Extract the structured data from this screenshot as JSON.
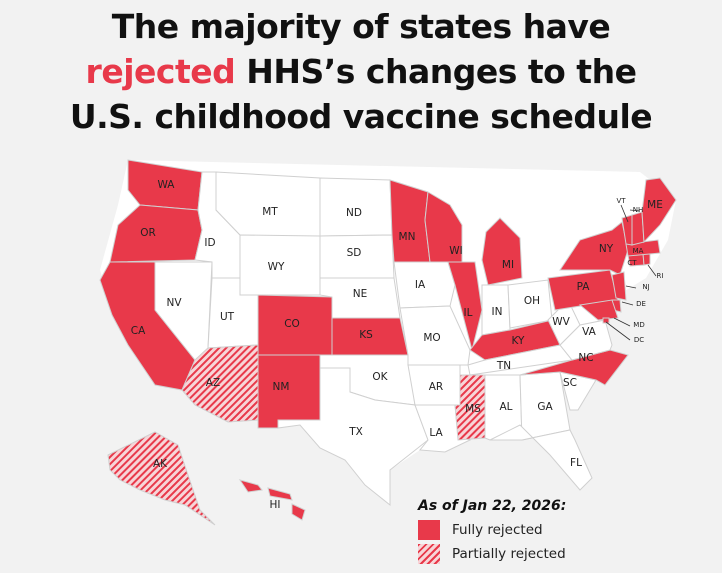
{
  "title": {
    "line1": "The majority of states have",
    "highlight": "rejected",
    "line2_rest": " HHS’s changes to the",
    "line3": "U.S. childhood vaccine schedule"
  },
  "legend": {
    "date": "As of Jan 22, 2026:",
    "fully_rejected": "Fully rejected",
    "partially_rejected": "Partially rejected"
  },
  "colors": {
    "fully_rejected": "#e8394a",
    "partially_rejected_stripe": "#e8394a",
    "partially_rejected_bg": "#f7d5d8",
    "no_action": "#ffffff",
    "borders": "#d0d0d0"
  },
  "states": [
    {
      "abbr": "WA",
      "status": "fully_rejected"
    },
    {
      "abbr": "OR",
      "status": "fully_rejected"
    },
    {
      "abbr": "CA",
      "status": "fully_rejected"
    },
    {
      "abbr": "NV",
      "status": "none"
    },
    {
      "abbr": "ID",
      "status": "none"
    },
    {
      "abbr": "MT",
      "status": "none"
    },
    {
      "abbr": "WY",
      "status": "none"
    },
    {
      "abbr": "UT",
      "status": "none"
    },
    {
      "abbr": "AZ",
      "status": "partially_rejected"
    },
    {
      "abbr": "CO",
      "status": "fully_rejected"
    },
    {
      "abbr": "NM",
      "status": "fully_rejected"
    },
    {
      "abbr": "ND",
      "status": "none"
    },
    {
      "abbr": "SD",
      "status": "none"
    },
    {
      "abbr": "NE",
      "status": "none"
    },
    {
      "abbr": "KS",
      "status": "fully_rejected"
    },
    {
      "abbr": "OK",
      "status": "none"
    },
    {
      "abbr": "TX",
      "status": "none"
    },
    {
      "abbr": "MN",
      "status": "fully_rejected"
    },
    {
      "abbr": "IA",
      "status": "none"
    },
    {
      "abbr": "MO",
      "status": "none"
    },
    {
      "abbr": "AR",
      "status": "none"
    },
    {
      "abbr": "LA",
      "status": "none"
    },
    {
      "abbr": "WI",
      "status": "fully_rejected"
    },
    {
      "abbr": "IL",
      "status": "fully_rejected"
    },
    {
      "abbr": "MI",
      "status": "fully_rejected"
    },
    {
      "abbr": "IN",
      "status": "none"
    },
    {
      "abbr": "OH",
      "status": "none"
    },
    {
      "abbr": "KY",
      "status": "fully_rejected"
    },
    {
      "abbr": "TN",
      "status": "none"
    },
    {
      "abbr": "MS",
      "status": "partially_rejected"
    },
    {
      "abbr": "AL",
      "status": "none"
    },
    {
      "abbr": "GA",
      "status": "none"
    },
    {
      "abbr": "FL",
      "status": "none"
    },
    {
      "abbr": "SC",
      "status": "none"
    },
    {
      "abbr": "NC",
      "status": "fully_rejected"
    },
    {
      "abbr": "VA",
      "status": "none"
    },
    {
      "abbr": "WV",
      "status": "none"
    },
    {
      "abbr": "PA",
      "status": "fully_rejected"
    },
    {
      "abbr": "NY",
      "status": "fully_rejected"
    },
    {
      "abbr": "NJ",
      "status": "fully_rejected"
    },
    {
      "abbr": "DE",
      "status": "fully_rejected"
    },
    {
      "abbr": "MD",
      "status": "fully_rejected"
    },
    {
      "abbr": "DC",
      "status": "fully_rejected"
    },
    {
      "abbr": "CT",
      "status": "fully_rejected"
    },
    {
      "abbr": "RI",
      "status": "fully_rejected"
    },
    {
      "abbr": "MA",
      "status": "fully_rejected"
    },
    {
      "abbr": "VT",
      "status": "fully_rejected"
    },
    {
      "abbr": "NH",
      "status": "fully_rejected"
    },
    {
      "abbr": "ME",
      "status": "fully_rejected"
    },
    {
      "abbr": "AK",
      "status": "partially_rejected"
    },
    {
      "abbr": "HI",
      "status": "fully_rejected"
    }
  ]
}
